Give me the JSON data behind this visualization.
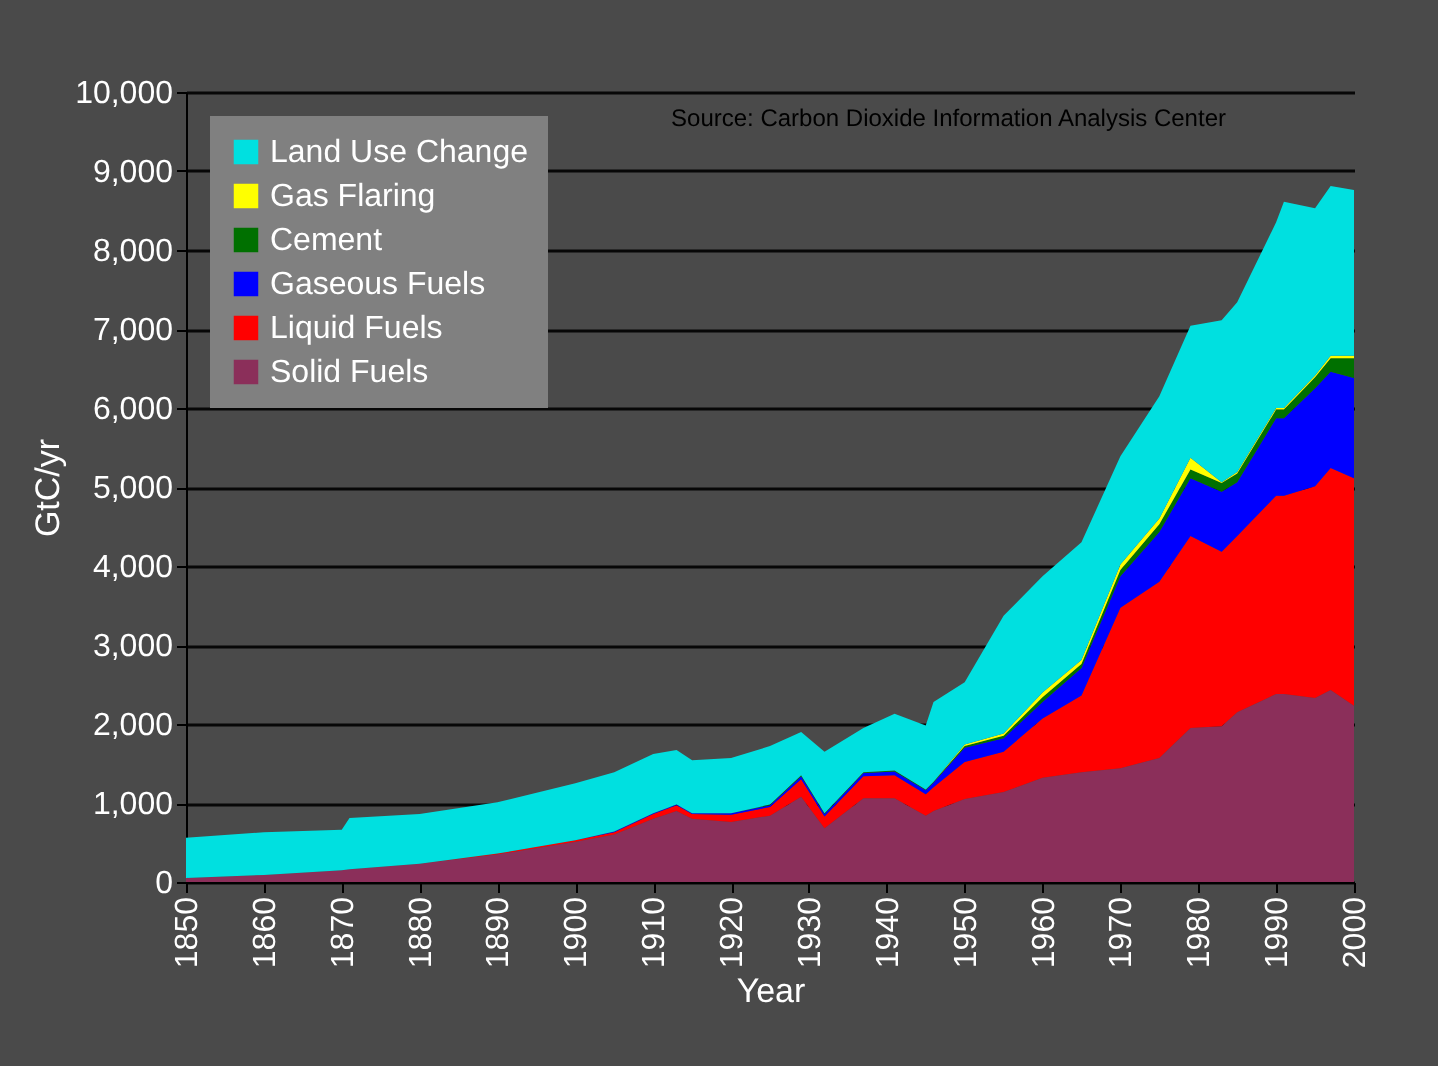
{
  "chart_data": {
    "type": "area",
    "stacked": true,
    "xlabel": "Year",
    "ylabel": "GtC/yr",
    "annotations": [
      "Source: Carbon Dioxide Information Analysis Center"
    ],
    "x": [
      1850,
      1860,
      1870,
      1871,
      1880,
      1890,
      1900,
      1905,
      1910,
      1913,
      1915,
      1920,
      1925,
      1929,
      1932,
      1937,
      1941,
      1945,
      1946,
      1950,
      1955,
      1960,
      1965,
      1970,
      1975,
      1979,
      1983,
      1985,
      1990,
      1991,
      1995,
      1997,
      2000
    ],
    "series": [
      {
        "name": "Solid Fuels",
        "color": "#8b2f5a",
        "values": [
          50,
          90,
          150,
          160,
          230,
          350,
          510,
          600,
          800,
          900,
          800,
          760,
          840,
          1080,
          680,
          1060,
          1060,
          840,
          900,
          1050,
          1140,
          1320,
          1390,
          1440,
          1570,
          1950,
          1970,
          2150,
          2380,
          2380,
          2330,
          2430,
          2230
        ]
      },
      {
        "name": "Liquid Fuels",
        "color": "#ff0000",
        "values": [
          0,
          0,
          0,
          0,
          0,
          10,
          20,
          30,
          60,
          70,
          60,
          90,
          110,
          220,
          150,
          280,
          290,
          270,
          300,
          470,
          510,
          750,
          970,
          2030,
          2230,
          2430,
          2210,
          2230,
          2510,
          2510,
          2680,
          2810,
          2880
        ]
      },
      {
        "name": "Gaseous Fuels",
        "color": "#0000ff",
        "values": [
          0,
          0,
          0,
          0,
          0,
          0,
          0,
          10,
          10,
          10,
          10,
          20,
          20,
          40,
          30,
          40,
          50,
          50,
          60,
          180,
          170,
          210,
          350,
          400,
          630,
          730,
          760,
          680,
          980,
          980,
          1240,
          1220,
          1270
        ]
      },
      {
        "name": "Cement",
        "color": "#007000",
        "values": [
          0,
          0,
          0,
          0,
          0,
          0,
          0,
          0,
          0,
          0,
          0,
          0,
          10,
          10,
          10,
          10,
          10,
          10,
          10,
          20,
          30,
          60,
          50,
          80,
          100,
          110,
          110,
          110,
          110,
          110,
          140,
          170,
          250
        ]
      },
      {
        "name": "Gas Flaring",
        "color": "#ffff00",
        "values": [
          0,
          0,
          0,
          0,
          0,
          0,
          0,
          0,
          0,
          0,
          0,
          0,
          0,
          0,
          0,
          0,
          0,
          0,
          0,
          20,
          30,
          60,
          50,
          70,
          70,
          150,
          10,
          20,
          20,
          20,
          20,
          30,
          30
        ]
      },
      {
        "name": "Land Use Change",
        "color": "#00e0e0",
        "values": [
          510,
          540,
          510,
          650,
          630,
          650,
          720,
          750,
          750,
          690,
          670,
          700,
          740,
          550,
          780,
          560,
          720,
          810,
          1010,
          790,
          1490,
          1470,
          1490,
          1370,
          1550,
          1670,
          2050,
          2150,
          2350,
          2610,
          2120,
          2150,
          2100
        ]
      }
    ],
    "xlim": [
      1850,
      2000
    ],
    "xticks": [
      1850,
      1860,
      1870,
      1880,
      1890,
      1900,
      1910,
      1920,
      1930,
      1940,
      1950,
      1960,
      1970,
      1980,
      1990,
      2000
    ],
    "ylim": [
      0,
      10000
    ],
    "yticks": [
      0,
      {
        "value": 1000,
        "label": "1,000"
      },
      {
        "value": 2000,
        "label": "2,000"
      },
      {
        "value": 3000,
        "label": "3,000"
      },
      {
        "value": 4000,
        "label": "4,000"
      },
      {
        "value": 5000,
        "label": "5,000"
      },
      {
        "value": 6000,
        "label": "6,000"
      },
      {
        "value": 7000,
        "label": "7,000"
      },
      {
        "value": 8000,
        "label": "8,000"
      },
      {
        "value": 9000,
        "label": "9,000"
      },
      {
        "value": 10000,
        "label": "10,000"
      }
    ],
    "grid": "y",
    "legend": "top left"
  }
}
